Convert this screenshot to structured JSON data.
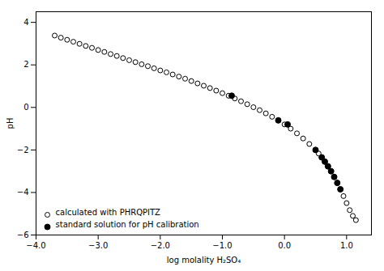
{
  "chart_data": {
    "type": "scatter",
    "xlabel": "log molality H₂SO₄",
    "ylabel": "pH",
    "xlim": [
      -4,
      1.4
    ],
    "ylim": [
      -6,
      4.5
    ],
    "xticks": [
      -4,
      -3,
      -2,
      -1,
      0,
      1
    ],
    "yticks": [
      -6,
      -4,
      -2,
      0,
      2,
      4
    ],
    "legend": "lower left",
    "series": [
      {
        "name": "calculated with PHRQPITZ",
        "color": "#000000",
        "marker": "open_circle",
        "x": [
          -3.7,
          -3.6,
          -3.5,
          -3.4,
          -3.3,
          -3.2,
          -3.1,
          -3.0,
          -2.9,
          -2.8,
          -2.7,
          -2.6,
          -2.5,
          -2.4,
          -2.3,
          -2.2,
          -2.1,
          -2.0,
          -1.9,
          -1.8,
          -1.7,
          -1.6,
          -1.5,
          -1.4,
          -1.3,
          -1.2,
          -1.1,
          -1.0,
          -0.9,
          -0.8,
          -0.7,
          -0.6,
          -0.5,
          -0.4,
          -0.3,
          -0.2,
          -0.1,
          0.0,
          0.1,
          0.2,
          0.3,
          0.4,
          0.5,
          0.55,
          0.6,
          0.65,
          0.7,
          0.75,
          0.8,
          0.85,
          0.9,
          0.95,
          1.0,
          1.05,
          1.1,
          1.15
        ],
        "values": [
          3.38,
          3.28,
          3.18,
          3.09,
          2.99,
          2.89,
          2.8,
          2.7,
          2.61,
          2.51,
          2.42,
          2.32,
          2.22,
          2.13,
          2.03,
          1.94,
          1.84,
          1.74,
          1.65,
          1.55,
          1.45,
          1.35,
          1.24,
          1.13,
          1.02,
          0.91,
          0.79,
          0.67,
          0.55,
          0.42,
          0.29,
          0.15,
          0.01,
          -0.13,
          -0.28,
          -0.44,
          -0.61,
          -0.8,
          -1.0,
          -1.22,
          -1.46,
          -1.72,
          -2.0,
          -2.17,
          -2.35,
          -2.55,
          -2.77,
          -3.0,
          -3.27,
          -3.55,
          -3.85,
          -4.17,
          -4.5,
          -4.83,
          -5.1,
          -5.3
        ]
      },
      {
        "name": "standard solution for pH calibration",
        "color": "#000000",
        "marker": "filled_circle",
        "x": [
          -0.85,
          -0.1,
          0.05,
          0.5,
          0.6,
          0.65,
          0.7,
          0.75,
          0.8,
          0.85,
          0.9
        ],
        "values": [
          0.55,
          -0.61,
          -0.8,
          -2.0,
          -2.35,
          -2.55,
          -2.77,
          -3.0,
          -3.27,
          -3.55,
          -3.85
        ]
      }
    ]
  }
}
